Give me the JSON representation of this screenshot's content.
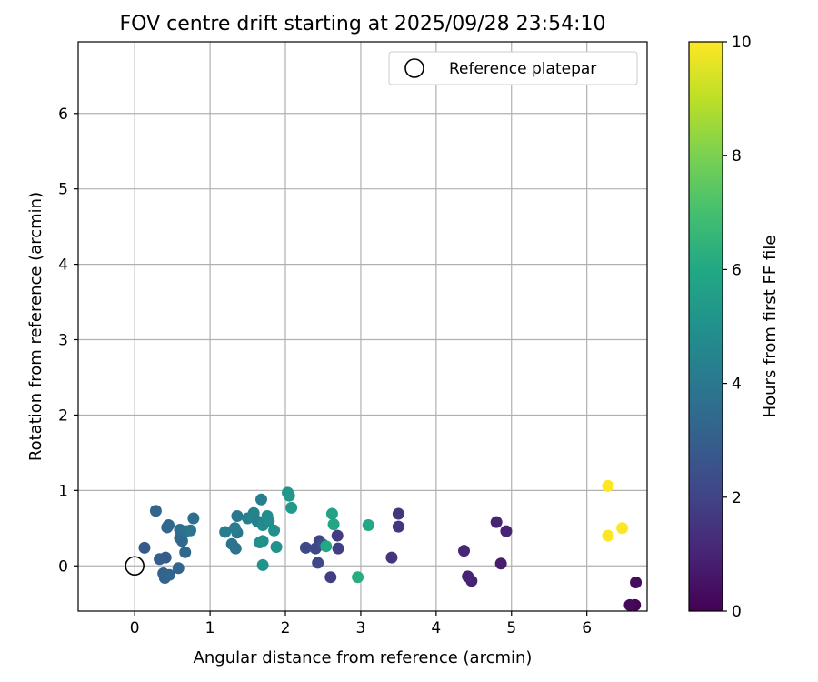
{
  "chart_data": {
    "type": "scatter",
    "title": "FOV centre drift starting at 2025/09/28 23:54:10",
    "xlabel": "Angular distance from reference (arcmin)",
    "ylabel": "Rotation from reference (arcmin)",
    "xlim": [
      -0.75,
      6.8
    ],
    "ylim": [
      -0.6,
      6.95
    ],
    "xticks": [
      0,
      1,
      2,
      3,
      4,
      5,
      6
    ],
    "yticks": [
      0,
      1,
      2,
      3,
      4,
      5,
      6
    ],
    "grid": true,
    "legend": {
      "position": "top-right",
      "entries": [
        "Reference platepar"
      ]
    },
    "reference_point": {
      "x": 0,
      "y": 0
    },
    "colorbar": {
      "label": "Hours from first FF file",
      "min": 0,
      "max": 10,
      "ticks": [
        0,
        2,
        4,
        6,
        8,
        10
      ],
      "colormap": "viridis"
    },
    "points": [
      {
        "x": 6.64,
        "y": -0.52,
        "c": 0.1
      },
      {
        "x": 6.57,
        "y": -0.52,
        "c": 0.2
      },
      {
        "x": 6.65,
        "y": -0.22,
        "c": 0.3
      },
      {
        "x": 4.86,
        "y": 0.03,
        "c": 0.8
      },
      {
        "x": 4.47,
        "y": -0.2,
        "c": 0.9
      },
      {
        "x": 4.42,
        "y": -0.14,
        "c": 1.0
      },
      {
        "x": 4.37,
        "y": 0.2,
        "c": 1.1
      },
      {
        "x": 4.8,
        "y": 0.58,
        "c": 1.0
      },
      {
        "x": 4.93,
        "y": 0.46,
        "c": 1.0
      },
      {
        "x": 3.41,
        "y": 0.11,
        "c": 1.5
      },
      {
        "x": 3.5,
        "y": 0.52,
        "c": 1.6
      },
      {
        "x": 3.5,
        "y": 0.69,
        "c": 1.6
      },
      {
        "x": 2.69,
        "y": 0.4,
        "c": 1.7
      },
      {
        "x": 2.7,
        "y": 0.23,
        "c": 1.8
      },
      {
        "x": 2.6,
        "y": -0.15,
        "c": 1.8
      },
      {
        "x": 2.45,
        "y": 0.33,
        "c": 2.0
      },
      {
        "x": 2.4,
        "y": 0.23,
        "c": 2.1
      },
      {
        "x": 2.27,
        "y": 0.24,
        "c": 2.2
      },
      {
        "x": 2.43,
        "y": 0.04,
        "c": 2.2
      },
      {
        "x": 2.5,
        "y": 0.28,
        "c": 2.4
      },
      {
        "x": 0.13,
        "y": 0.24,
        "c": 2.8
      },
      {
        "x": 0.33,
        "y": 0.09,
        "c": 3.0
      },
      {
        "x": 0.41,
        "y": 0.11,
        "c": 2.9
      },
      {
        "x": 0.38,
        "y": -0.1,
        "c": 3.1
      },
      {
        "x": 0.4,
        "y": -0.16,
        "c": 3.2
      },
      {
        "x": 0.46,
        "y": -0.12,
        "c": 3.3
      },
      {
        "x": 0.58,
        "y": -0.03,
        "c": 3.2
      },
      {
        "x": 0.28,
        "y": 0.73,
        "c": 3.3
      },
      {
        "x": 0.43,
        "y": 0.51,
        "c": 3.3
      },
      {
        "x": 0.45,
        "y": 0.54,
        "c": 3.4
      },
      {
        "x": 0.6,
        "y": 0.37,
        "c": 3.3
      },
      {
        "x": 0.63,
        "y": 0.33,
        "c": 3.4
      },
      {
        "x": 0.6,
        "y": 0.48,
        "c": 3.6
      },
      {
        "x": 0.68,
        "y": 0.46,
        "c": 3.7
      },
      {
        "x": 0.67,
        "y": 0.18,
        "c": 3.4
      },
      {
        "x": 0.74,
        "y": 0.47,
        "c": 3.9
      },
      {
        "x": 0.78,
        "y": 0.63,
        "c": 3.6
      },
      {
        "x": 1.29,
        "y": 0.29,
        "c": 3.8
      },
      {
        "x": 1.34,
        "y": 0.23,
        "c": 3.8
      },
      {
        "x": 1.36,
        "y": 0.44,
        "c": 3.9
      },
      {
        "x": 1.36,
        "y": 0.66,
        "c": 4.0
      },
      {
        "x": 1.2,
        "y": 0.45,
        "c": 4.2
      },
      {
        "x": 1.33,
        "y": 0.5,
        "c": 4.2
      },
      {
        "x": 1.5,
        "y": 0.63,
        "c": 4.3
      },
      {
        "x": 1.57,
        "y": 0.65,
        "c": 4.5
      },
      {
        "x": 1.58,
        "y": 0.7,
        "c": 4.4
      },
      {
        "x": 1.63,
        "y": 0.59,
        "c": 4.3
      },
      {
        "x": 1.68,
        "y": 0.88,
        "c": 4.2
      },
      {
        "x": 1.7,
        "y": 0.54,
        "c": 4.7
      },
      {
        "x": 1.74,
        "y": 0.59,
        "c": 4.6
      },
      {
        "x": 1.76,
        "y": 0.66,
        "c": 4.8
      },
      {
        "x": 1.78,
        "y": 0.59,
        "c": 4.8
      },
      {
        "x": 1.85,
        "y": 0.47,
        "c": 4.9
      },
      {
        "x": 1.66,
        "y": 0.31,
        "c": 4.9
      },
      {
        "x": 1.7,
        "y": 0.33,
        "c": 5.0
      },
      {
        "x": 1.7,
        "y": 0.01,
        "c": 5.1
      },
      {
        "x": 1.88,
        "y": 0.25,
        "c": 5.1
      },
      {
        "x": 2.03,
        "y": 0.97,
        "c": 5.2
      },
      {
        "x": 2.05,
        "y": 0.93,
        "c": 5.3
      },
      {
        "x": 2.08,
        "y": 0.77,
        "c": 5.4
      },
      {
        "x": 2.62,
        "y": 0.69,
        "c": 5.8
      },
      {
        "x": 2.64,
        "y": 0.55,
        "c": 5.9
      },
      {
        "x": 2.54,
        "y": 0.26,
        "c": 6.0
      },
      {
        "x": 3.1,
        "y": 0.54,
        "c": 6.0
      },
      {
        "x": 2.96,
        "y": -0.15,
        "c": 6.2
      },
      {
        "x": 6.28,
        "y": 1.06,
        "c": 10.0
      },
      {
        "x": 6.47,
        "y": 0.5,
        "c": 10.0
      },
      {
        "x": 6.28,
        "y": 0.4,
        "c": 10.0
      }
    ]
  }
}
